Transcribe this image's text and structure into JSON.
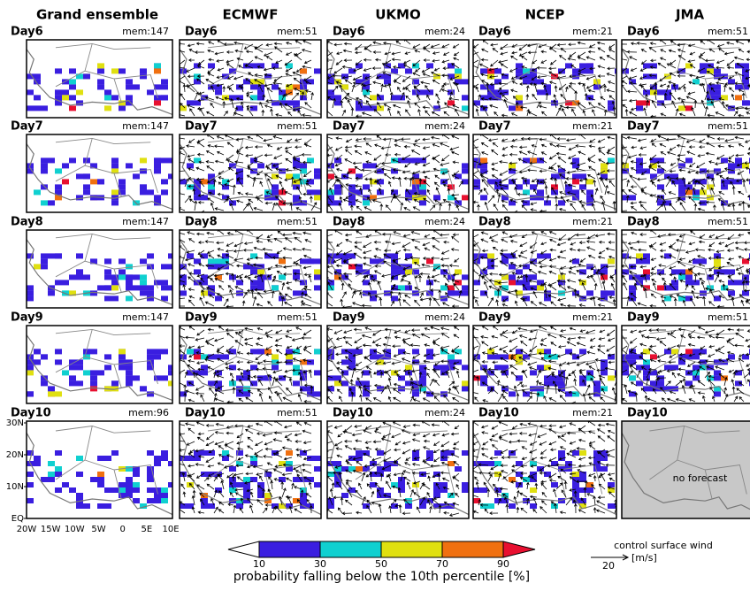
{
  "columns": [
    {
      "title": "Grand ensemble",
      "panels": [
        {
          "day": "Day6",
          "members": "mem:147"
        },
        {
          "day": "Day7",
          "members": "mem:147"
        },
        {
          "day": "Day8",
          "members": "mem:147"
        },
        {
          "day": "Day9",
          "members": "mem:147"
        },
        {
          "day": "Day10",
          "members": "mem:96"
        }
      ]
    },
    {
      "title": "ECMWF",
      "panels": [
        {
          "day": "Day6",
          "members": "mem:51"
        },
        {
          "day": "Day7",
          "members": "mem:51"
        },
        {
          "day": "Day8",
          "members": "mem:51"
        },
        {
          "day": "Day9",
          "members": "mem:51"
        },
        {
          "day": "Day10",
          "members": "mem:51"
        }
      ]
    },
    {
      "title": "UKMO",
      "panels": [
        {
          "day": "Day6",
          "members": "mem:24"
        },
        {
          "day": "Day7",
          "members": "mem:24"
        },
        {
          "day": "Day8",
          "members": "mem:24"
        },
        {
          "day": "Day9",
          "members": "mem:24"
        },
        {
          "day": "Day10",
          "members": "mem:24"
        }
      ]
    },
    {
      "title": "NCEP",
      "panels": [
        {
          "day": "Day6",
          "members": "mem:21"
        },
        {
          "day": "Day7",
          "members": "mem:21"
        },
        {
          "day": "Day8",
          "members": "mem:21"
        },
        {
          "day": "Day9",
          "members": "mem:21"
        },
        {
          "day": "Day10",
          "members": "mem:21"
        }
      ]
    },
    {
      "title": "JMA",
      "panels": [
        {
          "day": "Day6",
          "members": "mem:51"
        },
        {
          "day": "Day7",
          "members": "mem:51"
        },
        {
          "day": "Day8",
          "members": "mem:51"
        },
        {
          "day": "Day9",
          "members": "mem:51"
        },
        {
          "day": "Day10",
          "note": "no forecast"
        }
      ]
    }
  ],
  "map_axes": {
    "lat_labels": [
      "30N",
      "20N",
      "10N",
      "EQ"
    ],
    "lon_labels": [
      "20W",
      "15W",
      "10W",
      "5W",
      "0",
      "5E",
      "10E"
    ]
  },
  "colorbar": {
    "ticks": [
      10,
      30,
      50,
      70,
      90
    ],
    "colors": [
      "#ffffff",
      "#3a1ee0",
      "#10d0d0",
      "#e0e010",
      "#f07010",
      "#e81030"
    ],
    "label": "probability falling below the 10th percentile [%]"
  },
  "wind_legend": {
    "title": "control surface wind",
    "speed": 20,
    "unit": "[m/s]"
  }
}
